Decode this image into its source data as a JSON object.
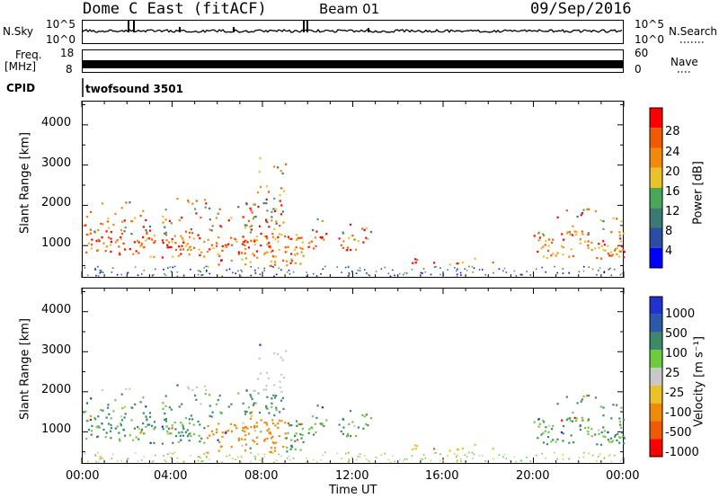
{
  "header": {
    "radar": "Dome C East (fitACF)",
    "beam": "Beam 01",
    "date": "09/Sep/2016"
  },
  "strips": {
    "nsky": {
      "label": "N.Sky",
      "top_tick": "10^5",
      "bottom_tick": "10^0",
      "right_top": "10^5",
      "right_bottom": "10^0",
      "right_label": "N.Search"
    },
    "freq": {
      "label_1": "Freq.",
      "label_2": "[MHz]",
      "top_tick": "18",
      "bottom_tick": "8",
      "right_top": "60",
      "right_bottom": "0",
      "right_label": "Nave"
    },
    "cpid": {
      "label": "CPID",
      "value": "twofsound 3501"
    }
  },
  "colors": {
    "power_bar": [
      "#0000ff",
      "#2c4ea2",
      "#3b7a72",
      "#47a85a",
      "#e8c228",
      "#f08a0a",
      "#f05a05",
      "#ff0000"
    ],
    "velocity_bar": [
      "#ff0000",
      "#f05a05",
      "#f08a0a",
      "#e8c228",
      "#c8c8c8",
      "#6ccc3c",
      "#3b8a6a",
      "#2c5aa8",
      "#1f33d0"
    ]
  },
  "chart_data": [
    {
      "type": "heatmap",
      "name": "power",
      "ylabel": "Slant Range [km]",
      "yticks": [
        "1000",
        "2000",
        "3000",
        "4000"
      ],
      "ylim": [
        200,
        4600
      ],
      "xlim": [
        0,
        24
      ],
      "colorbar": {
        "label": "Power [dB]",
        "ticks": [
          "4",
          "8",
          "12",
          "16",
          "20",
          "24",
          "28"
        ],
        "range": [
          0,
          32
        ]
      }
    },
    {
      "type": "heatmap",
      "name": "velocity",
      "ylabel": "Slant Range [km]",
      "yticks": [
        "1000",
        "2000",
        "3000",
        "4000"
      ],
      "ylim": [
        200,
        4600
      ],
      "xlim": [
        0,
        24
      ],
      "colorbar": {
        "label": "Velocity [m s⁻¹]",
        "ticks": [
          "1000",
          "500",
          "100",
          "25",
          "-25",
          "-100",
          "-500",
          "-1000"
        ]
      }
    }
  ],
  "xaxis": {
    "label": "Time UT",
    "ticks": [
      "00:00",
      "04:00",
      "08:00",
      "12:00",
      "16:00",
      "20:00",
      "00:00"
    ]
  }
}
